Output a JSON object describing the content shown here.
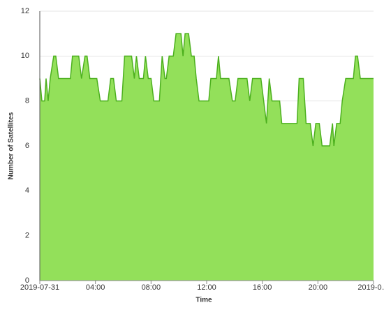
{
  "chart_data": {
    "type": "area",
    "x_label": "Time",
    "y_label": "Number of Satellites",
    "xlim": [
      0,
      24
    ],
    "ylim": [
      0,
      12
    ],
    "xticks": [
      {
        "value": 0,
        "label": "2019-07-31"
      },
      {
        "value": 4,
        "label": "04:00"
      },
      {
        "value": 8,
        "label": "08:00"
      },
      {
        "value": 12,
        "label": "12:00"
      },
      {
        "value": 16,
        "label": "16:00"
      },
      {
        "value": 20,
        "label": "20:00"
      },
      {
        "value": 24,
        "label": "2019-0…"
      }
    ],
    "yticks": [
      0,
      2,
      4,
      6,
      8,
      10,
      12
    ],
    "grid": true,
    "color": "#93e05a",
    "line_color": "#4cb01e",
    "x": [
      0,
      0.15,
      0.35,
      0.45,
      0.6,
      0.75,
      1.0,
      1.15,
      1.35,
      2.2,
      2.35,
      2.8,
      3.0,
      3.25,
      3.4,
      3.6,
      4.1,
      4.35,
      4.9,
      5.1,
      5.3,
      5.5,
      5.9,
      6.1,
      6.6,
      6.8,
      6.95,
      7.15,
      7.45,
      7.6,
      7.8,
      8.0,
      8.2,
      8.6,
      8.8,
      9.0,
      9.1,
      9.3,
      9.6,
      9.8,
      10.15,
      10.3,
      10.45,
      10.7,
      10.9,
      11.1,
      11.25,
      11.45,
      12.15,
      12.3,
      12.7,
      12.85,
      13.0,
      13.6,
      13.85,
      14.05,
      14.25,
      14.9,
      15.1,
      15.3,
      15.9,
      16.1,
      16.3,
      16.5,
      16.7,
      17.25,
      17.4,
      18.5,
      18.65,
      18.95,
      19.15,
      19.45,
      19.65,
      19.85,
      20.1,
      20.3,
      20.85,
      21.05,
      21.15,
      21.35,
      21.6,
      21.75,
      22.0,
      22.55,
      22.7,
      22.85,
      23.05,
      24
    ],
    "values": [
      9,
      8,
      8,
      9,
      8,
      9,
      10,
      10,
      9,
      9,
      10,
      10,
      9,
      10,
      10,
      9,
      9,
      8,
      8,
      9,
      9,
      8,
      8,
      10,
      10,
      9,
      10,
      9,
      9,
      10,
      9,
      9,
      8,
      8,
      10,
      9,
      9,
      10,
      10,
      11,
      11,
      10,
      11,
      11,
      10,
      10,
      9,
      8,
      8,
      9,
      9,
      10,
      9,
      9,
      8,
      8,
      9,
      9,
      8,
      9,
      9,
      8,
      7,
      9,
      8,
      8,
      7,
      7,
      9,
      9,
      7,
      7,
      6,
      7,
      7,
      6,
      6,
      7,
      6,
      7,
      7,
      8,
      9,
      9,
      10,
      10,
      9,
      9
    ]
  }
}
